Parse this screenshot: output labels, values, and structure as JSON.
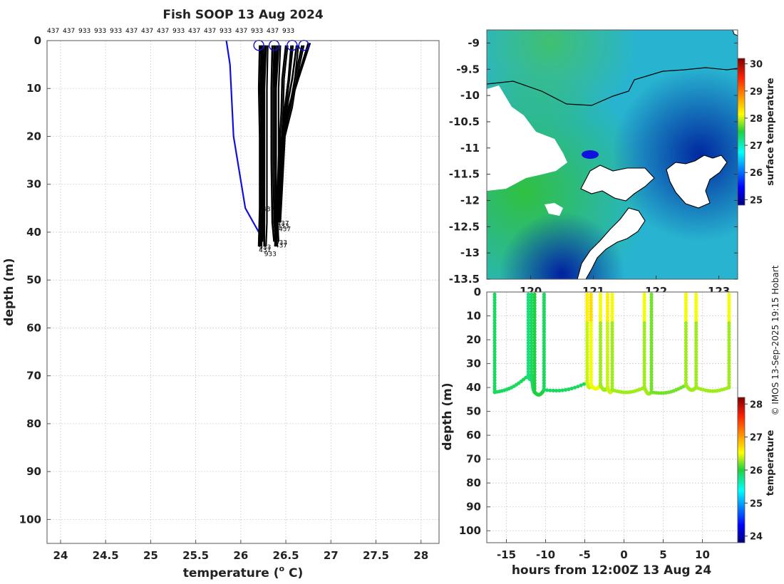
{
  "figure": {
    "title": "Fish SOOP 13 Aug 2024",
    "credit": "© IMOS 13-Sep-2025 19:15 Hobart"
  },
  "chart_data": [
    {
      "type": "line",
      "name": "profiles",
      "title": "Fish SOOP 13 Aug 2024",
      "xlabel": "temperature (o C)",
      "xlabel_main": "temperature (",
      "xlabel_sup": "o",
      "xlabel_end": " C)",
      "ylabel": "depth (m)",
      "xlim": [
        23.85,
        28.2
      ],
      "ylim": [
        105,
        0
      ],
      "xticks": [
        24,
        24.5,
        25,
        25.5,
        26,
        26.5,
        27,
        27.5,
        28
      ],
      "xtick_labels": [
        "24",
        "24.5",
        "25",
        "25.5",
        "26",
        "26.5",
        "27",
        "27.5",
        "28"
      ],
      "yticks": [
        0,
        10,
        20,
        30,
        40,
        50,
        60,
        70,
        80,
        90,
        100
      ],
      "ytick_labels": [
        "0",
        "10",
        "20",
        "30",
        "40",
        "50",
        "60",
        "70",
        "80",
        "90",
        "100"
      ],
      "top_labels": [
        "437",
        "437",
        "933",
        "933",
        "933",
        "437",
        "437",
        "437",
        "933",
        "437",
        "437",
        "933",
        "437",
        "933",
        "437",
        "933"
      ],
      "reference_series": {
        "name": "climatology",
        "color": "#1010dd",
        "x": [
          25.84,
          25.88,
          25.92,
          26.05,
          26.2
        ],
        "depth": [
          0,
          5,
          20,
          35,
          40
        ]
      },
      "series": [
        {
          "name": "437",
          "x": [
            26.21,
            26.21,
            26.22,
            26.22,
            26.2
          ],
          "depth": [
            1,
            10,
            20,
            35,
            43
          ]
        },
        {
          "name": "437",
          "x": [
            26.23,
            26.22,
            26.23,
            26.22,
            26.21
          ],
          "depth": [
            1,
            10,
            20,
            35,
            43
          ]
        },
        {
          "name": "933",
          "x": [
            26.25,
            26.24,
            26.24,
            26.23,
            26.22
          ],
          "depth": [
            1,
            10,
            25,
            36,
            42
          ]
        },
        {
          "name": "933",
          "x": [
            26.28,
            26.27,
            26.27,
            26.27,
            26.26
          ],
          "depth": [
            1,
            10,
            25,
            38,
            43
          ]
        },
        {
          "name": "933",
          "x": [
            26.35,
            26.34,
            26.34,
            26.35,
            26.37
          ],
          "depth": [
            1,
            10,
            25,
            38,
            42
          ]
        },
        {
          "name": "437",
          "x": [
            26.38,
            26.37,
            26.37,
            26.38,
            26.38
          ],
          "depth": [
            1,
            10,
            25,
            38,
            43
          ]
        },
        {
          "name": "437",
          "x": [
            26.42,
            26.4,
            26.4,
            26.39,
            26.4
          ],
          "depth": [
            1,
            10,
            25,
            38,
            42
          ]
        },
        {
          "name": "437",
          "x": [
            26.5,
            26.46,
            26.45,
            26.42,
            26.4
          ],
          "depth": [
            1,
            8,
            15,
            25,
            38
          ]
        },
        {
          "name": "933",
          "x": [
            26.56,
            26.52,
            26.48,
            26.44,
            26.4
          ],
          "depth": [
            1,
            8,
            14,
            22,
            38
          ]
        },
        {
          "name": "437",
          "x": [
            26.62,
            26.58,
            26.52,
            26.45,
            26.41
          ],
          "depth": [
            1,
            8,
            14,
            22,
            38
          ]
        },
        {
          "name": "437",
          "x": [
            26.68,
            26.6,
            26.55,
            26.47,
            26.42
          ],
          "depth": [
            1,
            8,
            14,
            20,
            38
          ]
        },
        {
          "name": "933",
          "x": [
            26.75,
            26.62,
            26.52,
            26.45,
            26.4
          ],
          "depth": [
            0.5,
            8,
            14,
            20,
            38
          ]
        }
      ],
      "end_labels": [
        "437",
        "437",
        "933",
        "437",
        "933",
        "437",
        "933",
        "437",
        "933"
      ]
    },
    {
      "type": "heatmap",
      "name": "surface_map",
      "colorbar_label": "surface temperature",
      "yticks": [
        -9,
        -9.5,
        -10,
        -10.5,
        -11,
        -11.5,
        -12,
        -12.5,
        -13,
        -13.5
      ],
      "ytick_labels": [
        "-9",
        "-9.5",
        "-10",
        "-10.5",
        "-11",
        "-11.5",
        "-12",
        "-12.5",
        "-13",
        "-13.5"
      ],
      "ylim": [
        -13.5,
        -8.75
      ],
      "xlim": [
        119.3,
        123.3
      ],
      "xticks": [
        120,
        121,
        122,
        123
      ],
      "xtick_labels": [
        "120",
        "121",
        "122",
        "123"
      ],
      "colorbar_ticks": [
        25,
        26,
        27,
        28,
        29,
        30
      ],
      "colorbar_range": [
        24.8,
        30.2
      ]
    },
    {
      "type": "scatter",
      "name": "time_depth",
      "xlabel": "hours from 12:00Z 13 Aug 24",
      "ylabel": "depth (m)",
      "xlim": [
        -17.5,
        14.5
      ],
      "ylim": [
        105,
        0
      ],
      "xticks": [
        -15,
        -10,
        -5,
        0,
        5,
        10
      ],
      "xtick_labels": [
        "-15",
        "-10",
        "-5",
        "0",
        "5",
        "10"
      ],
      "yticks": [
        0,
        10,
        20,
        30,
        40,
        50,
        60,
        70,
        80,
        90,
        100
      ],
      "ytick_labels": [
        "0",
        "10",
        "20",
        "30",
        "40",
        "50",
        "60",
        "70",
        "80",
        "90",
        "100"
      ],
      "colorbar_label": "temperature",
      "colorbar_ticks": [
        24,
        25,
        26,
        27,
        28
      ],
      "colorbar_range": [
        23.8,
        28.2
      ],
      "casts": [
        {
          "t": -16.5,
          "max_depth": 42,
          "temp": 25.9
        },
        {
          "t": -12.2,
          "max_depth": 35,
          "temp": 25.8
        },
        {
          "t": -11.8,
          "max_depth": 35,
          "temp": 25.9
        },
        {
          "t": -11.4,
          "max_depth": 42,
          "temp": 26.0
        },
        {
          "t": -10.2,
          "max_depth": 41,
          "temp": 25.9
        },
        {
          "t": -4.7,
          "max_depth": 38,
          "temp": 26.4
        },
        {
          "t": -4.2,
          "max_depth": 39,
          "temp": 26.5
        },
        {
          "t": -3.0,
          "max_depth": 39,
          "temp": 26.3
        },
        {
          "t": -2.1,
          "max_depth": 40,
          "temp": 26.4
        },
        {
          "t": -1.5,
          "max_depth": 41,
          "temp": 26.3
        },
        {
          "t": 2.6,
          "max_depth": 40,
          "temp": 26.3
        },
        {
          "t": 3.5,
          "max_depth": 42,
          "temp": 26.2
        },
        {
          "t": 7.9,
          "max_depth": 39,
          "temp": 26.3
        },
        {
          "t": 9.2,
          "max_depth": 40,
          "temp": 26.3
        },
        {
          "t": 13.4,
          "max_depth": 40,
          "temp": 26.3
        }
      ]
    }
  ]
}
